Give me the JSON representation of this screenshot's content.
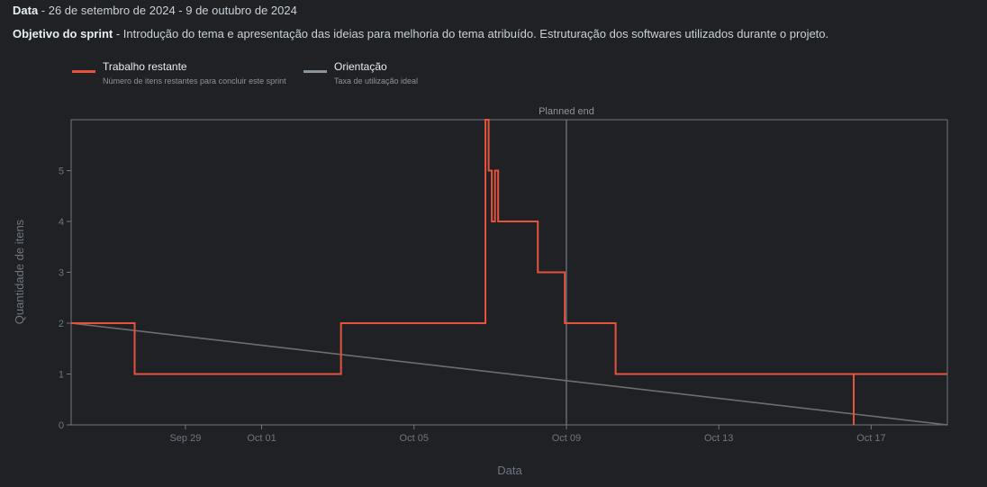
{
  "header": {
    "date_label": "Data",
    "date_value": " - 26 de setembro de 2024 - 9 de outubro de 2024",
    "goal_label": "Objetivo do sprint",
    "goal_value": " - Introdução do tema e apresentação das ideias para melhoria do tema atribuído. Estruturação dos softwares utilizados durante o projeto."
  },
  "legend": [
    {
      "title": "Trabalho restante",
      "desc": "Número de itens restantes para concluir este sprint",
      "color": "#e5533d"
    },
    {
      "title": "Orientação",
      "desc": "Taxa de utilização ideal",
      "color": "#8b949e"
    }
  ],
  "chart_data": {
    "type": "line",
    "xlabel": "Data",
    "ylabel": "Quantidade de itens",
    "xlim": [
      "2024-09-26",
      "2024-10-19"
    ],
    "ylim": [
      0,
      6
    ],
    "x_ticks": [
      {
        "date": "2024-09-29",
        "label": "Sep 29"
      },
      {
        "date": "2024-10-01",
        "label": "Oct 01"
      },
      {
        "date": "2024-10-05",
        "label": "Oct 05"
      },
      {
        "date": "2024-10-09",
        "label": "Oct 09"
      },
      {
        "date": "2024-10-13",
        "label": "Oct 13"
      },
      {
        "date": "2024-10-17",
        "label": "Oct 17"
      }
    ],
    "y_ticks": [
      0,
      1,
      2,
      3,
      4,
      5
    ],
    "annotations": [
      {
        "date": "2024-10-09",
        "label": "Planned end"
      }
    ],
    "series": [
      {
        "name": "Trabalho restante",
        "color": "#e5533d",
        "step": true,
        "points": [
          [
            "2024-09-26T00:00",
            2
          ],
          [
            "2024-09-27T16:00",
            2
          ],
          [
            "2024-09-27T16:00",
            1
          ],
          [
            "2024-10-03T02:00",
            1
          ],
          [
            "2024-10-03T02:00",
            2
          ],
          [
            "2024-10-06T21:00",
            2
          ],
          [
            "2024-10-06T21:00",
            6
          ],
          [
            "2024-10-06T23:00",
            6
          ],
          [
            "2024-10-06T23:00",
            5
          ],
          [
            "2024-10-07T01:00",
            5
          ],
          [
            "2024-10-07T01:00",
            4
          ],
          [
            "2024-10-07T03:00",
            4
          ],
          [
            "2024-10-07T03:00",
            5
          ],
          [
            "2024-10-07T05:00",
            5
          ],
          [
            "2024-10-07T05:00",
            4
          ],
          [
            "2024-10-08T06:00",
            4
          ],
          [
            "2024-10-08T06:00",
            3
          ],
          [
            "2024-10-08T23:00",
            3
          ],
          [
            "2024-10-08T23:00",
            2
          ],
          [
            "2024-10-10T07:00",
            2
          ],
          [
            "2024-10-10T07:00",
            1
          ],
          [
            "2024-10-16T13:00",
            1
          ],
          [
            "2024-10-16T13:00",
            0
          ],
          [
            "2024-10-16T13:00",
            1
          ],
          [
            "2024-10-19T00:00",
            1
          ]
        ]
      },
      {
        "name": "Orientação",
        "color": "#6e6e6e",
        "points": [
          [
            "2024-09-26T00:00",
            2
          ],
          [
            "2024-10-19T00:00",
            0
          ]
        ]
      }
    ]
  }
}
